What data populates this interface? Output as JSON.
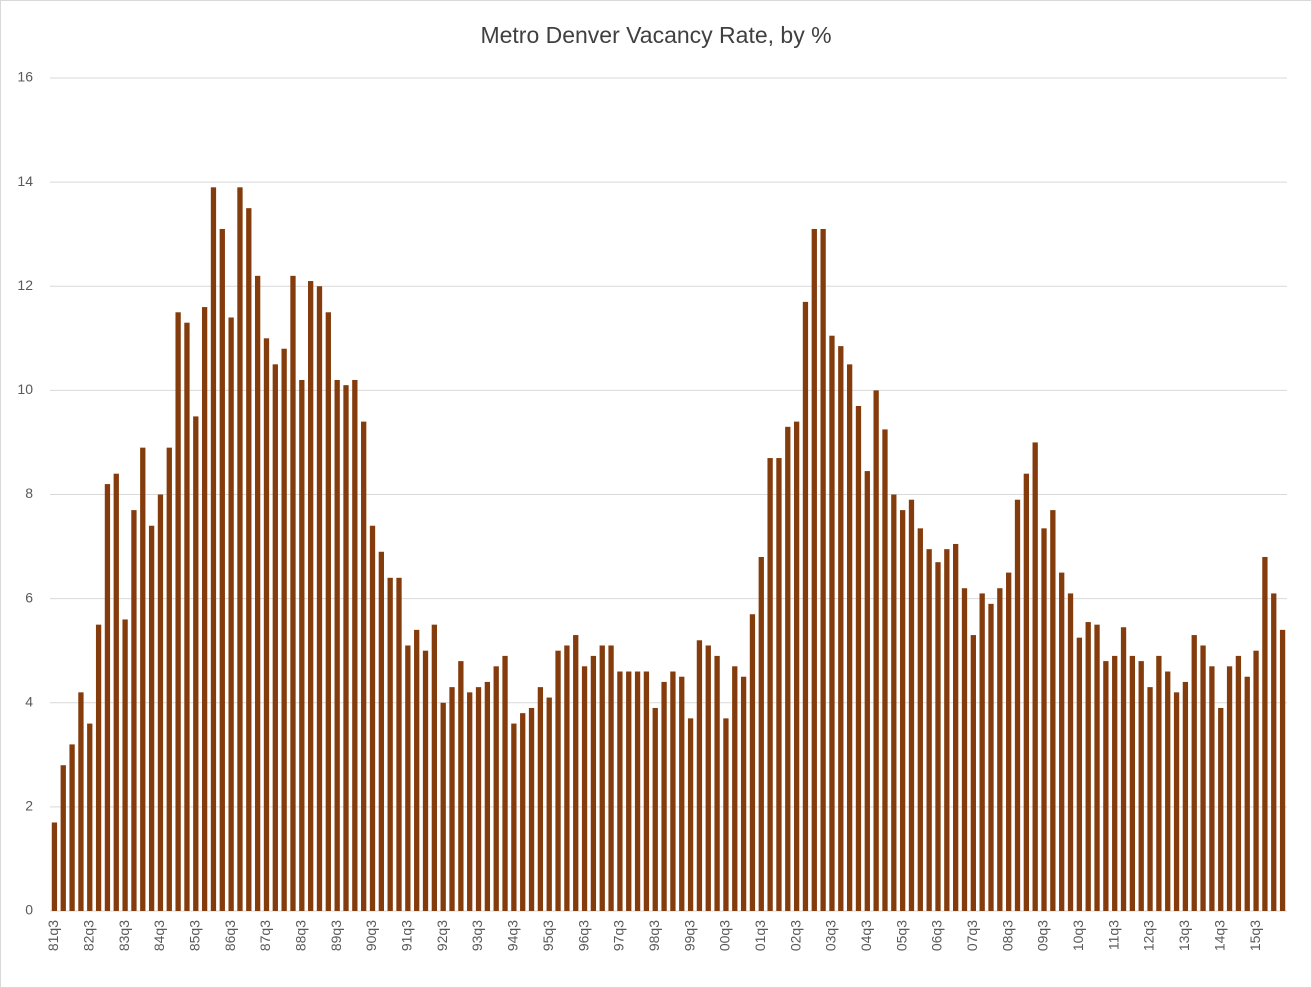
{
  "chart_data": {
    "type": "bar",
    "title": "Metro Denver Vacancy Rate, by %",
    "categories": [
      "81q3",
      null,
      null,
      null,
      "82q3",
      null,
      null,
      null,
      "83q3",
      null,
      null,
      null,
      "84q3",
      null,
      null,
      null,
      "85q3",
      null,
      null,
      null,
      "86q3",
      null,
      null,
      null,
      "87q3",
      null,
      null,
      null,
      "88q3",
      null,
      null,
      null,
      "89q3",
      null,
      null,
      null,
      "90q3",
      null,
      null,
      null,
      "91q3",
      null,
      null,
      null,
      "92q3",
      null,
      null,
      null,
      "93q3",
      null,
      null,
      null,
      "94q3",
      null,
      null,
      null,
      "95q3",
      null,
      null,
      null,
      "96q3",
      null,
      null,
      null,
      "97q3",
      null,
      null,
      null,
      "98q3",
      null,
      null,
      null,
      "99q3",
      null,
      null,
      null,
      "00q3",
      null,
      null,
      null,
      "01q3",
      null,
      null,
      null,
      "02q3",
      null,
      null,
      null,
      "03q3",
      null,
      null,
      null,
      "04q3",
      null,
      null,
      null,
      "05q3",
      null,
      null,
      null,
      "06q3",
      null,
      null,
      null,
      "07q3",
      null,
      null,
      null,
      "08q3",
      null,
      null,
      null,
      "09q3",
      null,
      null,
      null,
      "10q3",
      null,
      null,
      null,
      "11q3",
      null,
      null,
      null,
      "12q3",
      null,
      null,
      null,
      "13q3",
      null,
      null,
      null,
      "14q3",
      null,
      null,
      null,
      "15q3",
      null,
      null,
      null
    ],
    "values": [
      1.7,
      2.8,
      3.2,
      4.2,
      3.6,
      5.5,
      8.2,
      8.4,
      5.6,
      7.7,
      8.9,
      7.4,
      8.0,
      8.9,
      11.5,
      11.3,
      9.5,
      11.6,
      13.9,
      13.1,
      11.4,
      13.9,
      13.5,
      12.2,
      11.0,
      10.5,
      10.8,
      12.2,
      10.2,
      12.1,
      12.0,
      11.5,
      10.2,
      10.1,
      10.2,
      9.4,
      7.4,
      6.9,
      6.4,
      6.4,
      5.1,
      5.4,
      5.0,
      5.5,
      4.0,
      4.3,
      4.8,
      4.2,
      4.3,
      4.4,
      4.7,
      4.9,
      3.6,
      3.8,
      3.9,
      4.3,
      4.1,
      5.0,
      5.1,
      5.3,
      4.7,
      4.9,
      5.1,
      5.1,
      4.6,
      4.6,
      4.6,
      4.6,
      3.9,
      4.4,
      4.6,
      4.5,
      3.7,
      5.2,
      5.1,
      4.9,
      3.7,
      4.7,
      4.5,
      5.7,
      6.8,
      8.7,
      8.7,
      9.3,
      9.4,
      11.7,
      13.1,
      13.1,
      11.05,
      10.85,
      10.5,
      9.7,
      8.45,
      10.0,
      9.25,
      8.0,
      7.7,
      7.9,
      7.35,
      6.95,
      6.7,
      6.95,
      7.05,
      6.2,
      5.3,
      6.1,
      5.9,
      6.2,
      6.5,
      7.9,
      8.4,
      9.0,
      7.35,
      7.7,
      6.5,
      6.1,
      5.25,
      5.55,
      5.5,
      4.8,
      4.9,
      5.45,
      4.9,
      4.8,
      4.3,
      4.9,
      4.6,
      4.2,
      4.4,
      5.3,
      5.1,
      4.7,
      3.9,
      4.7,
      4.9,
      4.5,
      5.0,
      6.8,
      6.1,
      5.4
    ],
    "color": "#843c0c",
    "ylim": [
      0,
      16
    ],
    "yticks": [
      0,
      2,
      4,
      6,
      8,
      10,
      12,
      14,
      16
    ],
    "grid": true
  }
}
